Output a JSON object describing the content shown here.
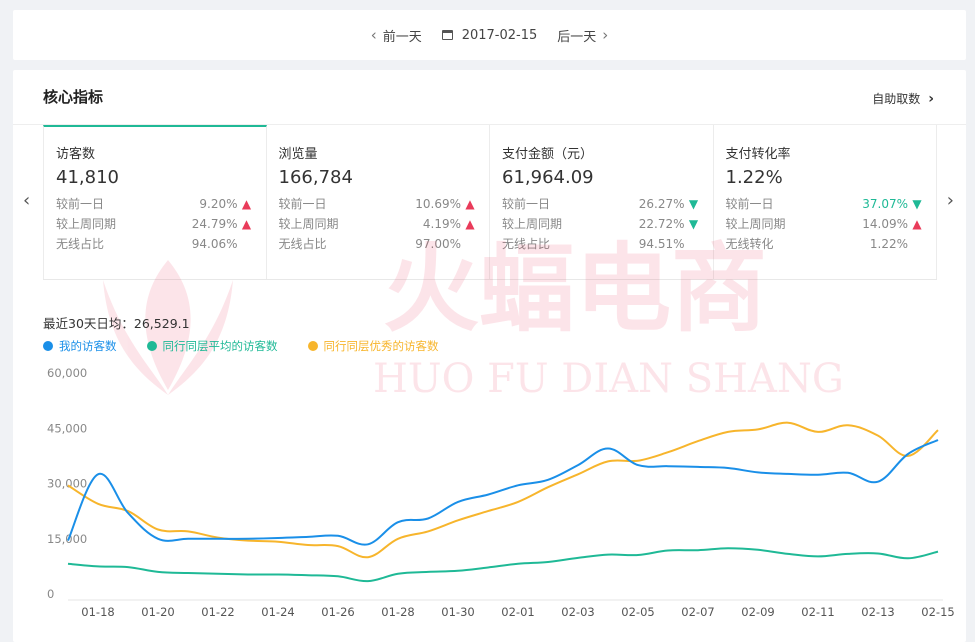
{
  "date_nav": {
    "prev_label": "前一天",
    "date": "2017-02-15",
    "next_label": "后一天"
  },
  "card": {
    "title": "核心指标",
    "self_fetch_label": "自助取数"
  },
  "metrics": [
    {
      "name": "访客数",
      "value": "41,810",
      "rows": [
        {
          "label": "较前一日",
          "value": "9.20%",
          "trend": "up"
        },
        {
          "label": "较上周同期",
          "value": "24.79%",
          "trend": "up"
        },
        {
          "label": "无线占比",
          "value": "94.06%",
          "trend": ""
        }
      ]
    },
    {
      "name": "浏览量",
      "value": "166,784",
      "rows": [
        {
          "label": "较前一日",
          "value": "10.69%",
          "trend": "up"
        },
        {
          "label": "较上周同期",
          "value": "4.19%",
          "trend": "up"
        },
        {
          "label": "无线占比",
          "value": "97.00%",
          "trend": ""
        }
      ]
    },
    {
      "name": "支付金额（元）",
      "value": "61,964.09",
      "rows": [
        {
          "label": "较前一日",
          "value": "26.27%",
          "trend": "down"
        },
        {
          "label": "较上周同期",
          "value": "22.72%",
          "trend": "down"
        },
        {
          "label": "无线占比",
          "value": "94.51%",
          "trend": ""
        }
      ]
    },
    {
      "name": "支付转化率",
      "value": "1.22%",
      "rows": [
        {
          "label": "较前一日",
          "value": "37.07%",
          "trend": "down",
          "highlight": true
        },
        {
          "label": "较上周同期",
          "value": "14.09%",
          "trend": "up"
        },
        {
          "label": "无线转化",
          "value": "1.22%",
          "trend": ""
        }
      ]
    }
  ],
  "colors": {
    "accent": "#1fb996",
    "up": "#e93b5a",
    "down": "#1fb996",
    "series_mine": "#1a8fe8",
    "series_avg": "#1fb996",
    "series_top": "#f7b52c"
  },
  "watermark": {
    "cn": "火蝠电商",
    "en": "HUO FU DIAN SHANG"
  },
  "chart_data": {
    "type": "line",
    "avg_label": "最近30天日均：26,529.1",
    "y_ticks": [
      "60,000",
      "45,000",
      "30,000",
      "15,000",
      "0"
    ],
    "ylim": [
      0,
      60000
    ],
    "x_tick_labels": [
      "01-18",
      "01-20",
      "01-22",
      "01-24",
      "01-26",
      "01-28",
      "01-30",
      "02-01",
      "02-03",
      "02-05",
      "02-07",
      "02-09",
      "02-11",
      "02-13",
      "02-15"
    ],
    "x": [
      "01-17",
      "01-18",
      "01-19",
      "01-20",
      "01-21",
      "01-22",
      "01-23",
      "01-24",
      "01-25",
      "01-26",
      "01-27",
      "01-28",
      "01-29",
      "01-30",
      "01-31",
      "02-01",
      "02-02",
      "02-03",
      "02-04",
      "02-05",
      "02-06",
      "02-07",
      "02-08",
      "02-09",
      "02-10",
      "02-11",
      "02-12",
      "02-13",
      "02-14",
      "02-15"
    ],
    "series": [
      {
        "name": "我的访客数",
        "color": "#1a8fe8",
        "values": [
          14500,
          32500,
          22000,
          15000,
          15000,
          15000,
          15000,
          15200,
          15500,
          15800,
          13500,
          19500,
          20500,
          25000,
          27000,
          29500,
          31000,
          35000,
          39500,
          35000,
          34700,
          34500,
          34200,
          33000,
          32600,
          32400,
          32900,
          30500,
          38000,
          41800
        ]
      },
      {
        "name": "同行同层平均的访客数",
        "color": "#1fb996",
        "values": [
          8200,
          7500,
          7300,
          6000,
          5700,
          5500,
          5300,
          5300,
          5100,
          4800,
          3500,
          5500,
          6000,
          6300,
          7200,
          8200,
          8700,
          9800,
          10700,
          10600,
          11800,
          11900,
          12400,
          12000,
          10900,
          10200,
          10900,
          11000,
          9700,
          11500
        ]
      },
      {
        "name": "同行同层优秀的访客数",
        "color": "#f7b52c",
        "values": [
          29500,
          24500,
          22500,
          17500,
          17000,
          15300,
          14500,
          14200,
          13300,
          13000,
          10000,
          15000,
          17000,
          20000,
          22500,
          25000,
          29000,
          32500,
          36000,
          36200,
          38500,
          41500,
          44000,
          44700,
          46500,
          44000,
          45800,
          43000,
          37500,
          44500
        ]
      }
    ]
  }
}
